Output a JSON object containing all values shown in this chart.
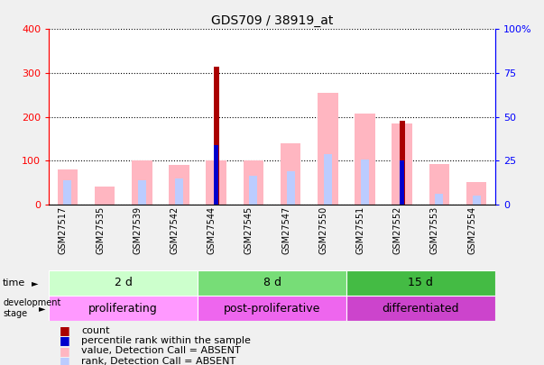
{
  "title": "GDS709 / 38919_at",
  "samples": [
    "GSM27517",
    "GSM27535",
    "GSM27539",
    "GSM27542",
    "GSM27544",
    "GSM27545",
    "GSM27547",
    "GSM27550",
    "GSM27551",
    "GSM27552",
    "GSM27553",
    "GSM27554"
  ],
  "count_values": [
    0,
    0,
    0,
    0,
    315,
    0,
    0,
    0,
    0,
    190,
    0,
    0
  ],
  "percentile_rank": [
    0,
    0,
    0,
    0,
    135,
    0,
    0,
    0,
    0,
    100,
    0,
    0
  ],
  "absent_value": [
    80,
    40,
    100,
    90,
    100,
    100,
    140,
    255,
    207,
    185,
    92,
    52
  ],
  "absent_rank": [
    55,
    0,
    55,
    60,
    0,
    65,
    75,
    115,
    103,
    0,
    25,
    20
  ],
  "time_groups": [
    {
      "label": "2 d",
      "start": 0,
      "end": 4
    },
    {
      "label": "8 d",
      "start": 4,
      "end": 8
    },
    {
      "label": "15 d",
      "start": 8,
      "end": 12
    }
  ],
  "time_colors": [
    "#CCFFCC",
    "#77DD77",
    "#44BB44"
  ],
  "dev_groups": [
    {
      "label": "proliferating",
      "start": 0,
      "end": 4
    },
    {
      "label": "post-proliferative",
      "start": 4,
      "end": 8
    },
    {
      "label": "differentiated",
      "start": 8,
      "end": 12
    }
  ],
  "dev_colors": [
    "#FF99FF",
    "#EE66EE",
    "#CC44CC"
  ],
  "left_ylim": [
    0,
    400
  ],
  "right_ylim": [
    0,
    100
  ],
  "left_yticks": [
    0,
    100,
    200,
    300,
    400
  ],
  "right_yticks": [
    0,
    25,
    50,
    75,
    100
  ],
  "right_yticklabels": [
    "0",
    "25",
    "50",
    "75",
    "100%"
  ],
  "color_count": "#AA0000",
  "color_percentile": "#0000CC",
  "color_absent_value": "#FFB6C1",
  "color_absent_rank": "#BBCCFF",
  "bg_color": "#F0F0F0",
  "plot_bg": "#FFFFFF"
}
